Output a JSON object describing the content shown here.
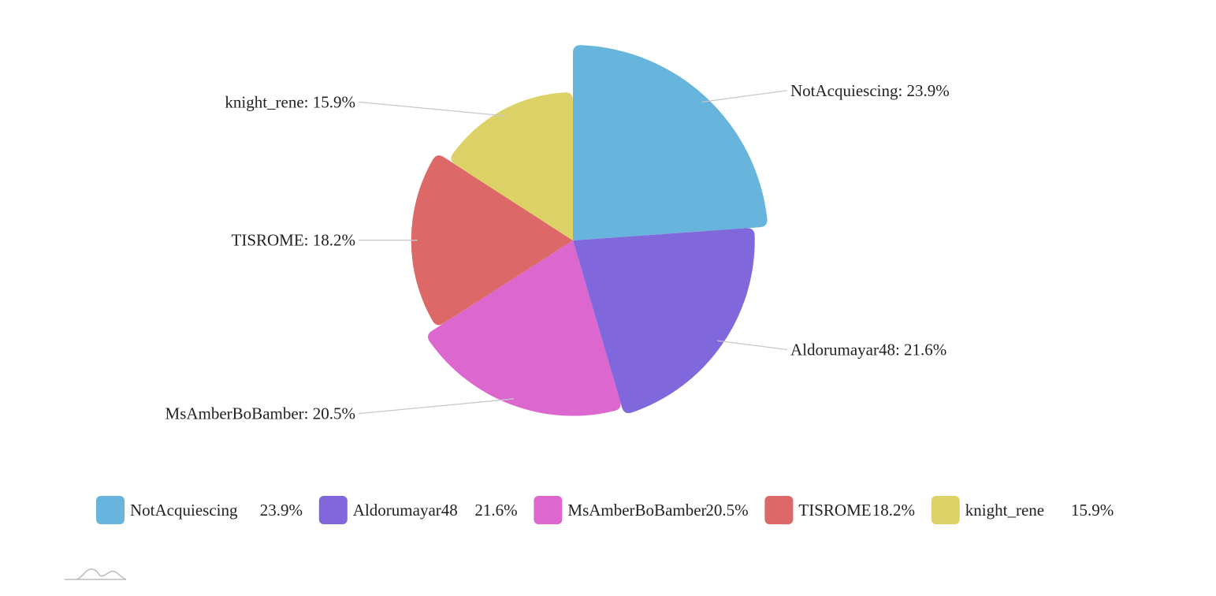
{
  "chart_data": {
    "type": "pie",
    "variant": "rose (radius proportional to value)",
    "title": "",
    "series": [
      {
        "name": "",
        "values": [
          {
            "name": "NotAcquiescing",
            "value": 23.9,
            "label": "NotAcquiescing: 23.9%",
            "legend_value": "23.9%",
            "color": "#67b5dc"
          },
          {
            "name": "Aldorumayar48",
            "value": 21.6,
            "label": "Aldorumayar48: 21.6%",
            "legend_value": "21.6%",
            "color": "#8068dc"
          },
          {
            "name": "MsAmberBoBamber",
            "value": 20.5,
            "label": "MsAmberBoBamber: 20.5%",
            "legend_value": "20.5%",
            "color": "#dc67ce"
          },
          {
            "name": "TISROME",
            "value": 18.2,
            "label": "TISROME: 18.2%",
            "legend_value": "18.2%",
            "color": "#dc6967"
          },
          {
            "name": "knight_rene",
            "value": 15.9,
            "label": "knight_rene: 15.9%",
            "legend_value": "15.9%",
            "color": "#dcd267"
          }
        ]
      }
    ],
    "legend_position": "bottom-left",
    "grid": false
  }
}
